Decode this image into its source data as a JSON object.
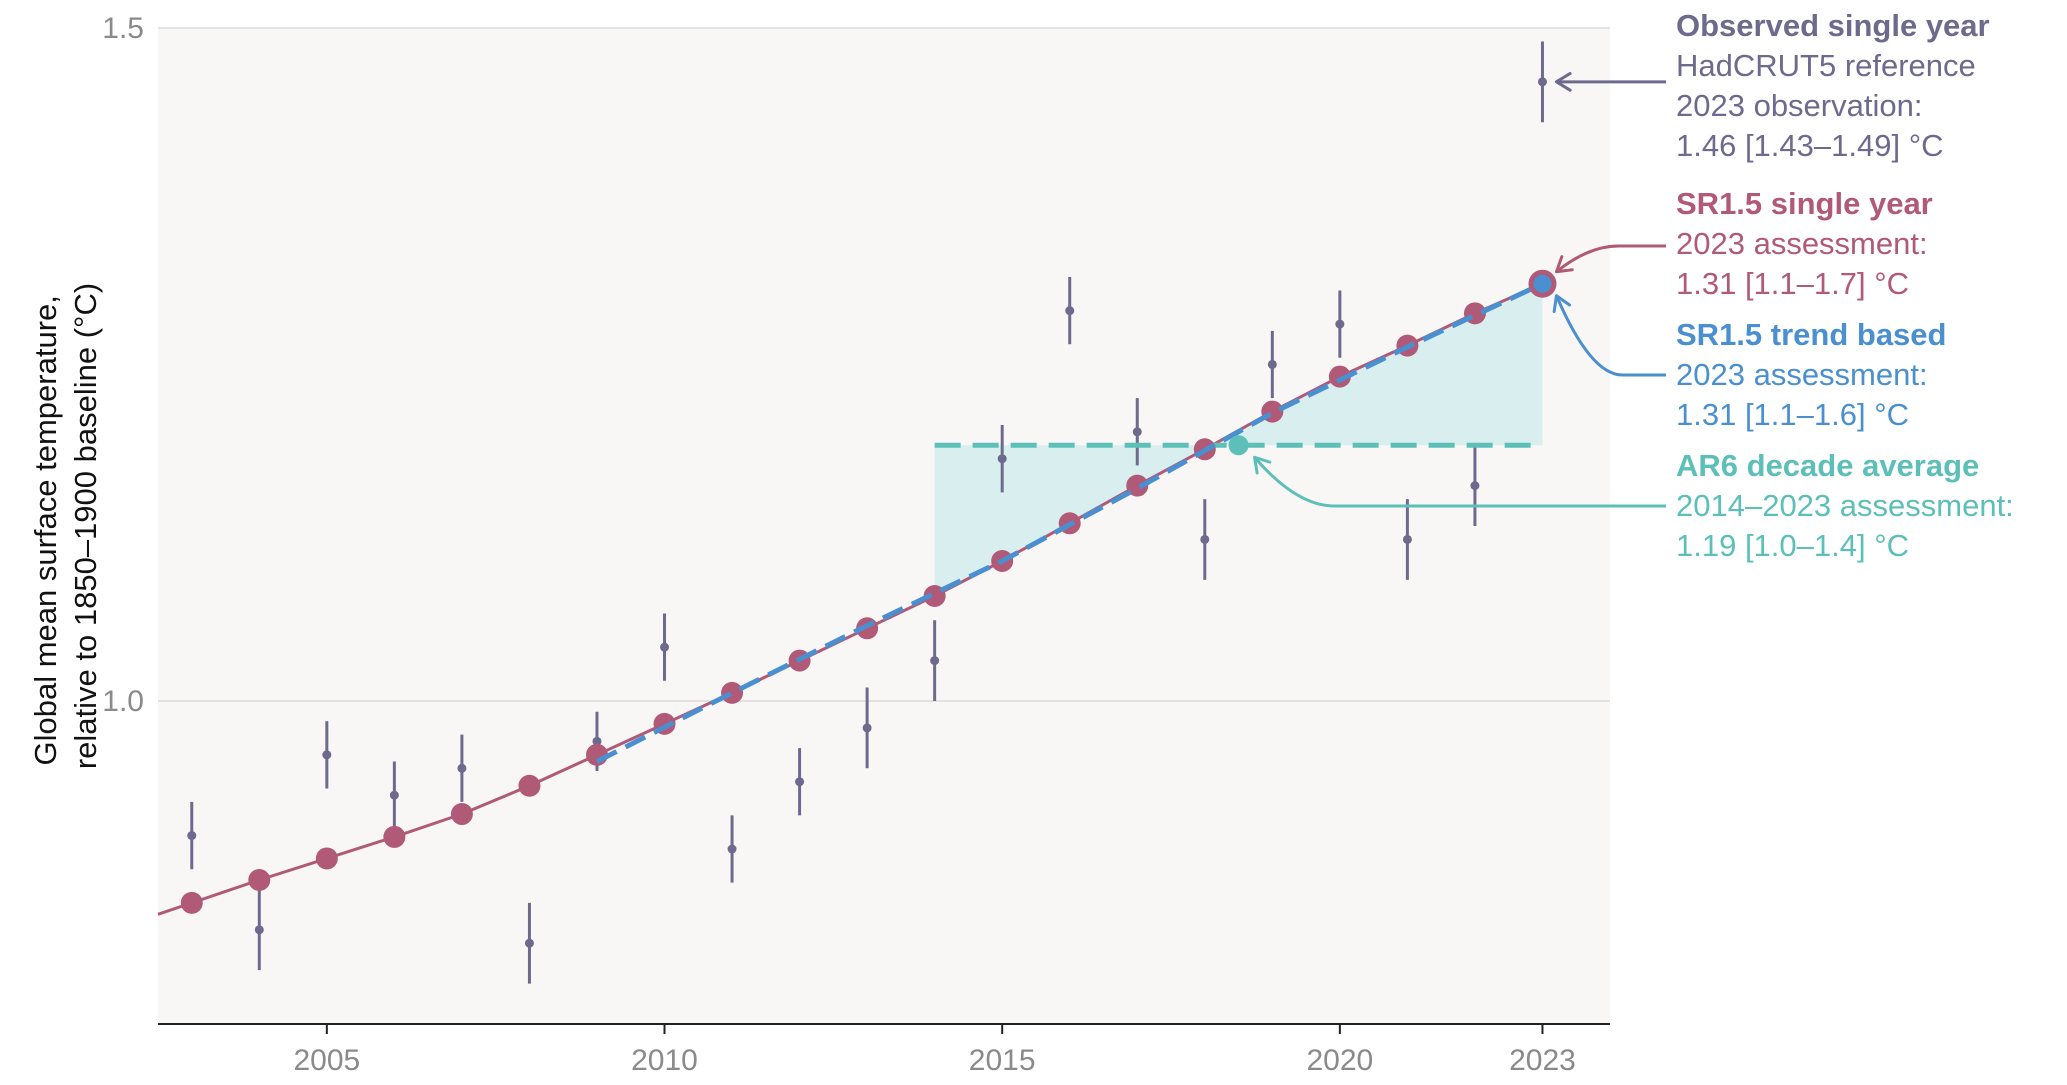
{
  "chart_data": {
    "type": "line",
    "ylabel_lines": [
      "Global mean surface temperature,",
      "relative to 1850–1900 baseline (°C)"
    ],
    "xlim": [
      2002.5,
      2024.0
    ],
    "ylim": [
      0.76,
      1.5
    ],
    "y_ticks": [
      1.0,
      1.5
    ],
    "y_tick_labels": [
      "1.0",
      "1.5"
    ],
    "x_ticks": [
      2005,
      2010,
      2015,
      2020,
      2023
    ],
    "x_tick_labels": [
      "2005",
      "2010",
      "2015",
      "2020",
      "2023"
    ],
    "grid": "horizontal",
    "colors": {
      "observed": "#6e6a8e",
      "sr15_single": "#b05a78",
      "sr15_trend": "#4a8fd0",
      "ar6": "#5cbfb8",
      "fill": "#d9eeee",
      "plot_bg": "#f8f7f6"
    },
    "series": [
      {
        "name": "Observed single year",
        "style": "errorbar",
        "x": [
          2003,
          2004,
          2005,
          2006,
          2007,
          2008,
          2009,
          2010,
          2011,
          2012,
          2013,
          2014,
          2015,
          2016,
          2017,
          2018,
          2019,
          2020,
          2021,
          2022,
          2023
        ],
        "y": [
          0.9,
          0.83,
          0.96,
          0.93,
          0.95,
          0.82,
          0.97,
          1.04,
          0.89,
          0.94,
          0.98,
          1.03,
          1.18,
          1.29,
          1.2,
          1.12,
          1.25,
          1.28,
          1.12,
          1.16,
          1.46
        ],
        "err": [
          0.025,
          0.03,
          0.025,
          0.025,
          0.025,
          0.03,
          0.022,
          0.025,
          0.025,
          0.025,
          0.03,
          0.03,
          0.025,
          0.025,
          0.025,
          0.03,
          0.025,
          0.025,
          0.03,
          0.03,
          0.03
        ]
      },
      {
        "name": "SR1.5 single year",
        "style": "line-markers",
        "x": [
          2003,
          2004,
          2005,
          2006,
          2007,
          2008,
          2009,
          2010,
          2011,
          2012,
          2013,
          2014,
          2015,
          2016,
          2017,
          2018,
          2019,
          2020,
          2021,
          2022,
          2023
        ],
        "y": [
          0.85,
          0.867,
          0.883,
          0.899,
          0.916,
          0.937,
          0.96,
          0.983,
          1.006,
          1.03,
          1.054,
          1.078,
          1.104,
          1.132,
          1.16,
          1.187,
          1.215,
          1.241,
          1.264,
          1.288,
          1.31
        ]
      },
      {
        "name": "SR1.5 trend based",
        "style": "dashed",
        "x": [
          2009,
          2011,
          2013,
          2015,
          2017,
          2019,
          2021,
          2023
        ],
        "y": [
          0.955,
          1.006,
          1.056,
          1.104,
          1.158,
          1.214,
          1.263,
          1.31
        ]
      },
      {
        "name": "AR6 decade average",
        "style": "dashed-horizontal",
        "x": [
          2014,
          2023
        ],
        "y": [
          1.19,
          1.19
        ],
        "marker_x": 2018.5
      }
    ],
    "annotations": [
      {
        "key": "observed",
        "title": "Observed single year",
        "lines": [
          "HadCRUT5 reference",
          "2023 observation:",
          "1.46 [1.43–1.49] °C"
        ]
      },
      {
        "key": "sr15_single",
        "title": "SR1.5 single year",
        "lines": [
          "2023 assessment:",
          "1.31 [1.1–1.7] °C"
        ]
      },
      {
        "key": "sr15_trend",
        "title": "SR1.5 trend based",
        "lines": [
          "2023 assessment:",
          "1.31 [1.1–1.6] °C"
        ]
      },
      {
        "key": "ar6",
        "title": "AR6 decade average",
        "lines": [
          "2014–2023 assessment:",
          "1.19 [1.0–1.4] °C"
        ]
      }
    ]
  }
}
